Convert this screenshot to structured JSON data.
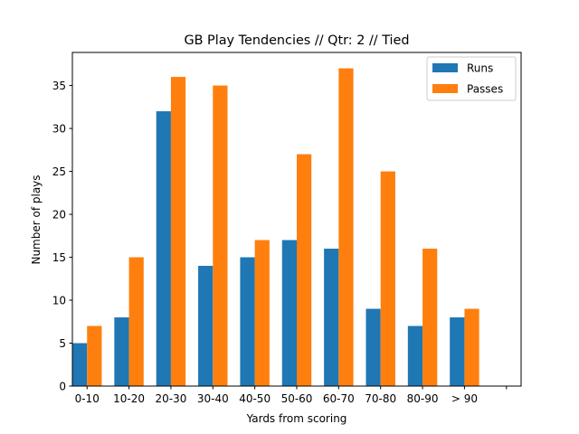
{
  "chart_data": {
    "type": "bar",
    "title": "GB Play Tendencies // Qtr: 2 // Tied",
    "xlabel": "Yards from scoring",
    "ylabel": "Number of plays",
    "categories": [
      "0-10",
      "10-20",
      "20-30",
      "30-40",
      "40-50",
      "50-60",
      "60-70",
      "70-80",
      "80-90",
      "> 90",
      ""
    ],
    "series": [
      {
        "name": "Runs",
        "color": "#1f77b4",
        "values": [
          5,
          8,
          32,
          14,
          15,
          17,
          16,
          9,
          7,
          8,
          0
        ]
      },
      {
        "name": "Passes",
        "color": "#ff7f0e",
        "values": [
          7,
          15,
          36,
          35,
          17,
          27,
          37,
          25,
          16,
          9,
          0
        ]
      }
    ],
    "ylim": [
      0,
      38.85
    ],
    "yticks": [
      0,
      5,
      10,
      15,
      20,
      25,
      30,
      35
    ],
    "grid": false,
    "legend": "upper right"
  }
}
